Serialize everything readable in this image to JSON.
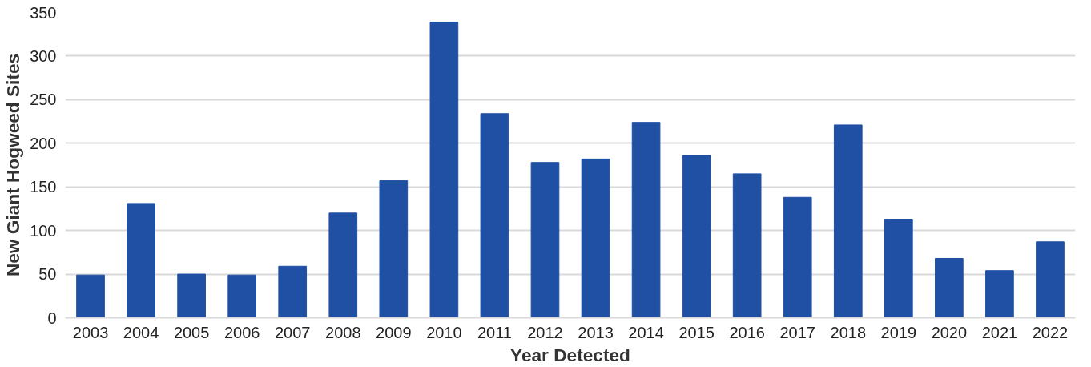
{
  "chart_data": {
    "type": "bar",
    "xlabel": "Year Detected",
    "ylabel": "New Giant Hogweed Sites",
    "categories": [
      "2003",
      "2004",
      "2005",
      "2006",
      "2007",
      "2008",
      "2009",
      "2010",
      "2011",
      "2012",
      "2013",
      "2014",
      "2015",
      "2016",
      "2017",
      "2018",
      "2019",
      "2020",
      "2021",
      "2022"
    ],
    "values": [
      49,
      131,
      50,
      49,
      59,
      120,
      157,
      339,
      234,
      178,
      182,
      224,
      186,
      165,
      138,
      221,
      113,
      68,
      54,
      87
    ],
    "color": "#2050a3",
    "ylim": [
      0,
      350
    ],
    "yticks": [
      0,
      50,
      100,
      150,
      200,
      250,
      300,
      350
    ],
    "grid": "y"
  }
}
